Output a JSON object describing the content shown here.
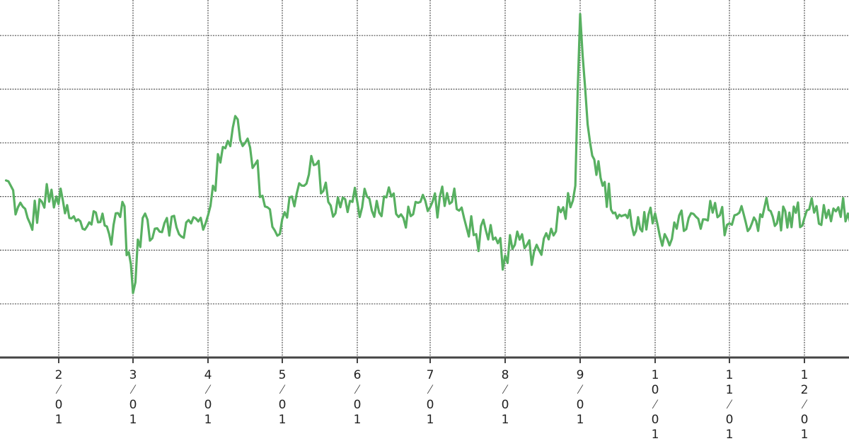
{
  "chart_data": {
    "type": "line",
    "title": "",
    "xlabel": "",
    "ylabel": "",
    "x_tick_labels": [
      "2/01",
      "3/01",
      "4/01",
      "5/01",
      "6/01",
      "7/01",
      "8/01",
      "9/01",
      "10/01",
      "11/01",
      "12/01"
    ],
    "ylim": [
      0,
      6.5
    ],
    "y_gridlines": [
      1,
      2,
      3,
      4,
      5,
      6
    ],
    "grid": true,
    "legend": "none",
    "series": [
      {
        "color": "#58b061",
        "points": [
          [
            "01/10",
            3.3
          ],
          [
            "01/15",
            2.8
          ],
          [
            "01/20",
            2.5
          ],
          [
            "01/25",
            2.9
          ],
          [
            "01/31",
            3.0
          ],
          [
            "02/05",
            2.6
          ],
          [
            "02/10",
            2.4
          ],
          [
            "02/15",
            2.7
          ],
          [
            "02/20",
            2.3
          ],
          [
            "02/25",
            2.9
          ],
          [
            "03/01",
            1.2
          ],
          [
            "03/05",
            2.6
          ],
          [
            "03/10",
            2.4
          ],
          [
            "03/15",
            2.6
          ],
          [
            "03/20",
            2.3
          ],
          [
            "03/25",
            2.5
          ],
          [
            "03/31",
            2.5
          ],
          [
            "04/03",
            3.2
          ],
          [
            "04/08",
            3.9
          ],
          [
            "04/12",
            4.5
          ],
          [
            "04/16",
            4.0
          ],
          [
            "04/20",
            3.6
          ],
          [
            "04/25",
            2.8
          ],
          [
            "04/30",
            2.3
          ],
          [
            "05/05",
            3.0
          ],
          [
            "05/10",
            3.2
          ],
          [
            "05/15",
            3.6
          ],
          [
            "05/20",
            2.9
          ],
          [
            "05/25",
            2.8
          ],
          [
            "06/01",
            2.9
          ],
          [
            "06/05",
            3.0
          ],
          [
            "06/10",
            2.7
          ],
          [
            "06/15",
            3.0
          ],
          [
            "06/20",
            2.6
          ],
          [
            "06/25",
            2.9
          ],
          [
            "07/01",
            2.8
          ],
          [
            "07/05",
            3.0
          ],
          [
            "07/10",
            2.9
          ],
          [
            "07/15",
            2.6
          ],
          [
            "07/20",
            2.3
          ],
          [
            "07/25",
            2.2
          ],
          [
            "08/01",
            1.9
          ],
          [
            "08/05",
            2.1
          ],
          [
            "08/10",
            2.1
          ],
          [
            "08/15",
            2.0
          ],
          [
            "08/20",
            2.4
          ],
          [
            "08/25",
            2.8
          ],
          [
            "08/30",
            3.2
          ],
          [
            "09/01",
            6.4
          ],
          [
            "09/05",
            4.0
          ],
          [
            "09/10",
            3.2
          ],
          [
            "09/15",
            2.7
          ],
          [
            "09/20",
            2.6
          ],
          [
            "09/25",
            2.4
          ],
          [
            "09/30",
            2.5
          ],
          [
            "10/05",
            2.3
          ],
          [
            "10/10",
            2.4
          ],
          [
            "10/15",
            2.6
          ],
          [
            "10/20",
            2.4
          ],
          [
            "10/25",
            2.7
          ],
          [
            "11/01",
            2.5
          ],
          [
            "11/05",
            2.7
          ],
          [
            "11/10",
            2.5
          ],
          [
            "11/15",
            2.8
          ],
          [
            "11/20",
            2.5
          ],
          [
            "11/25",
            2.7
          ],
          [
            "12/01",
            2.6
          ],
          [
            "12/05",
            2.7
          ],
          [
            "12/10",
            2.6
          ],
          [
            "12/15",
            2.8
          ],
          [
            "12/20",
            2.5
          ],
          [
            "12/22",
            1.9
          ]
        ]
      }
    ]
  }
}
